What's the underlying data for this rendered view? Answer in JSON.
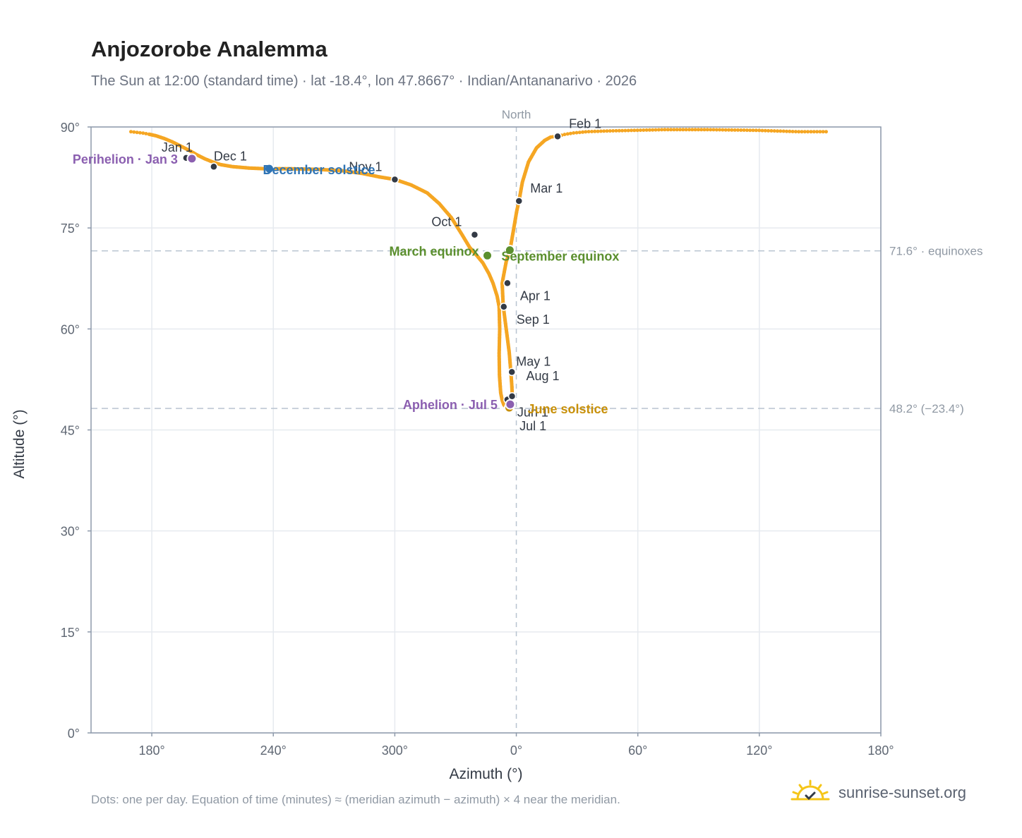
{
  "title": "Anjozorobe Analemma",
  "subtitle": "The Sun at 12:00 (standard time) · lat -18.4°, lon 47.8667° · Indian/Antananarivo · 2026",
  "footnote": "Dots: one per day. Equation of time (minutes) ≈ (meridian azimuth − azimuth) × 4 near the meridian.",
  "brand": "sunrise-sunset.org",
  "colors": {
    "curve": "#f5a623",
    "month_dot": "#333a45",
    "equinox": "#5b8f2e",
    "december_solstice": "#2f74b5",
    "june_solstice": "#c8900a",
    "apsis": "#8b5fb0",
    "grid": "#e6eaef",
    "axis_frame": "#8e9aab",
    "reference_line": "#b8c4d0",
    "text_dark": "#333a45",
    "text_muted": "#9099a4",
    "brand_sun": "#f5c518"
  },
  "chart_data": {
    "type": "scatter",
    "xlabel": "Azimuth (°)",
    "ylabel": "Altitude (°)",
    "x_range": [
      150,
      540
    ],
    "x_ticks": [
      {
        "value": 180,
        "label": "180°"
      },
      {
        "value": 240,
        "label": "240°"
      },
      {
        "value": 300,
        "label": "300°"
      },
      {
        "value": 360,
        "label": "0°"
      },
      {
        "value": 420,
        "label": "60°"
      },
      {
        "value": 480,
        "label": "120°"
      },
      {
        "value": 540,
        "label": "180°"
      }
    ],
    "ylim": [
      0,
      90
    ],
    "y_ticks": [
      {
        "value": 0,
        "label": "0°"
      },
      {
        "value": 15,
        "label": "15°"
      },
      {
        "value": 30,
        "label": "30°"
      },
      {
        "value": 45,
        "label": "45°"
      },
      {
        "value": 60,
        "label": "60°"
      },
      {
        "value": 75,
        "label": "75°"
      },
      {
        "value": 90,
        "label": "90°"
      }
    ],
    "grid": true,
    "meridian": {
      "azimuth": 360,
      "label": "North"
    },
    "reference_lines": [
      {
        "altitude": 71.6,
        "label": "71.6° · equinoxes"
      },
      {
        "altitude": 48.2,
        "label": "48.2° (−23.4°)"
      }
    ],
    "path": [
      [
        169.7,
        89.3
      ],
      [
        175.5,
        89.1
      ],
      [
        179,
        88.9
      ],
      [
        182,
        88.7
      ],
      [
        186,
        88.3
      ],
      [
        190,
        87.8
      ],
      [
        194,
        87.2
      ],
      [
        198,
        86.6
      ],
      [
        202,
        85.9
      ],
      [
        206,
        85.3
      ],
      [
        210,
        84.8
      ],
      [
        214,
        84.4
      ],
      [
        220,
        84.1
      ],
      [
        228,
        83.9
      ],
      [
        236,
        83.8
      ],
      [
        248,
        83.8
      ],
      [
        262,
        83.7
      ],
      [
        274,
        83.5
      ],
      [
        284,
        83.1
      ],
      [
        292,
        82.6
      ],
      [
        300,
        82.2
      ],
      [
        308,
        81.4
      ],
      [
        316,
        80.2
      ],
      [
        322,
        78.6
      ],
      [
        328,
        76.5
      ],
      [
        333,
        74.1
      ],
      [
        337,
        72.1
      ],
      [
        340.5,
        70.9
      ],
      [
        343.5,
        69.8
      ],
      [
        346.5,
        68.2
      ],
      [
        348.5,
        66.8
      ],
      [
        350.5,
        64.9
      ],
      [
        351.5,
        63.3
      ],
      [
        351.8,
        60.0
      ],
      [
        351.5,
        56.3
      ],
      [
        351.7,
        53.0
      ],
      [
        352.3,
        50.5
      ],
      [
        353.0,
        49.4
      ],
      [
        353.9,
        48.7
      ],
      [
        355.0,
        48.4
      ],
      [
        356.0,
        48.3
      ],
      [
        356.9,
        48.8
      ],
      [
        358.0,
        50.0
      ],
      [
        357.8,
        51.5
      ],
      [
        357.3,
        53.6
      ],
      [
        356.5,
        56.5
      ],
      [
        355.0,
        60.0
      ],
      [
        353.5,
        63.5
      ],
      [
        353.0,
        66.8
      ],
      [
        355.0,
        70.0
      ],
      [
        356.8,
        71.6
      ],
      [
        358.5,
        74.5
      ],
      [
        360.2,
        77.5
      ],
      [
        361.3,
        79.0
      ],
      [
        363.0,
        81.8
      ],
      [
        366.0,
        84.8
      ],
      [
        370.0,
        86.9
      ],
      [
        374.0,
        88.0
      ],
      [
        377.0,
        88.5
      ],
      [
        380.0,
        88.6
      ],
      [
        384.0,
        88.9
      ],
      [
        388.0,
        89.1
      ],
      [
        395.0,
        89.3
      ],
      [
        405.0,
        89.4
      ],
      [
        418.0,
        89.5
      ],
      [
        433.0,
        89.6
      ],
      [
        455.0,
        89.6
      ],
      [
        478.0,
        89.5
      ],
      [
        499.0,
        89.3
      ],
      [
        513.0,
        89.3
      ]
    ],
    "month_markers": [
      {
        "label": "Jan 1",
        "az": 197,
        "alt": 85.4
      },
      {
        "label": "Feb 1",
        "az": 380.4,
        "alt": 88.6
      },
      {
        "label": "Mar 1",
        "az": 361.3,
        "alt": 79.0
      },
      {
        "label": "Apr 1",
        "az": 355.6,
        "alt": 66.8
      },
      {
        "label": "May 1",
        "az": 357.8,
        "alt": 53.6
      },
      {
        "label": "Jun 1",
        "az": 355.6,
        "alt": 49.5
      },
      {
        "label": "Jul 1",
        "az": 356.7,
        "alt": 48.3
      },
      {
        "label": "Aug 1",
        "az": 357.9,
        "alt": 50.0
      },
      {
        "label": "Sep 1",
        "az": 353.8,
        "alt": 63.3
      },
      {
        "label": "Oct 1",
        "az": 339.4,
        "alt": 74.0
      },
      {
        "label": "Nov 1",
        "az": 300.0,
        "alt": 82.2
      },
      {
        "label": "Dec 1",
        "az": 210.6,
        "alt": 84.1
      }
    ],
    "events": [
      {
        "label": "March equinox",
        "az": 345.7,
        "alt": 70.9,
        "kind": "equinox"
      },
      {
        "label": "September equinox",
        "az": 356.8,
        "alt": 71.7,
        "kind": "equinox"
      },
      {
        "label": "June solstice",
        "az": 356.5,
        "alt": 48.3,
        "kind": "june_solstice"
      },
      {
        "label": "December solstice",
        "az": 238.0,
        "alt": 83.8,
        "kind": "december_solstice"
      },
      {
        "label": "Perihelion · Jan 3",
        "az": 199.8,
        "alt": 85.3,
        "kind": "apsis"
      },
      {
        "label": "Aphelion · Jul 5",
        "az": 357.0,
        "alt": 48.8,
        "kind": "apsis"
      }
    ]
  }
}
